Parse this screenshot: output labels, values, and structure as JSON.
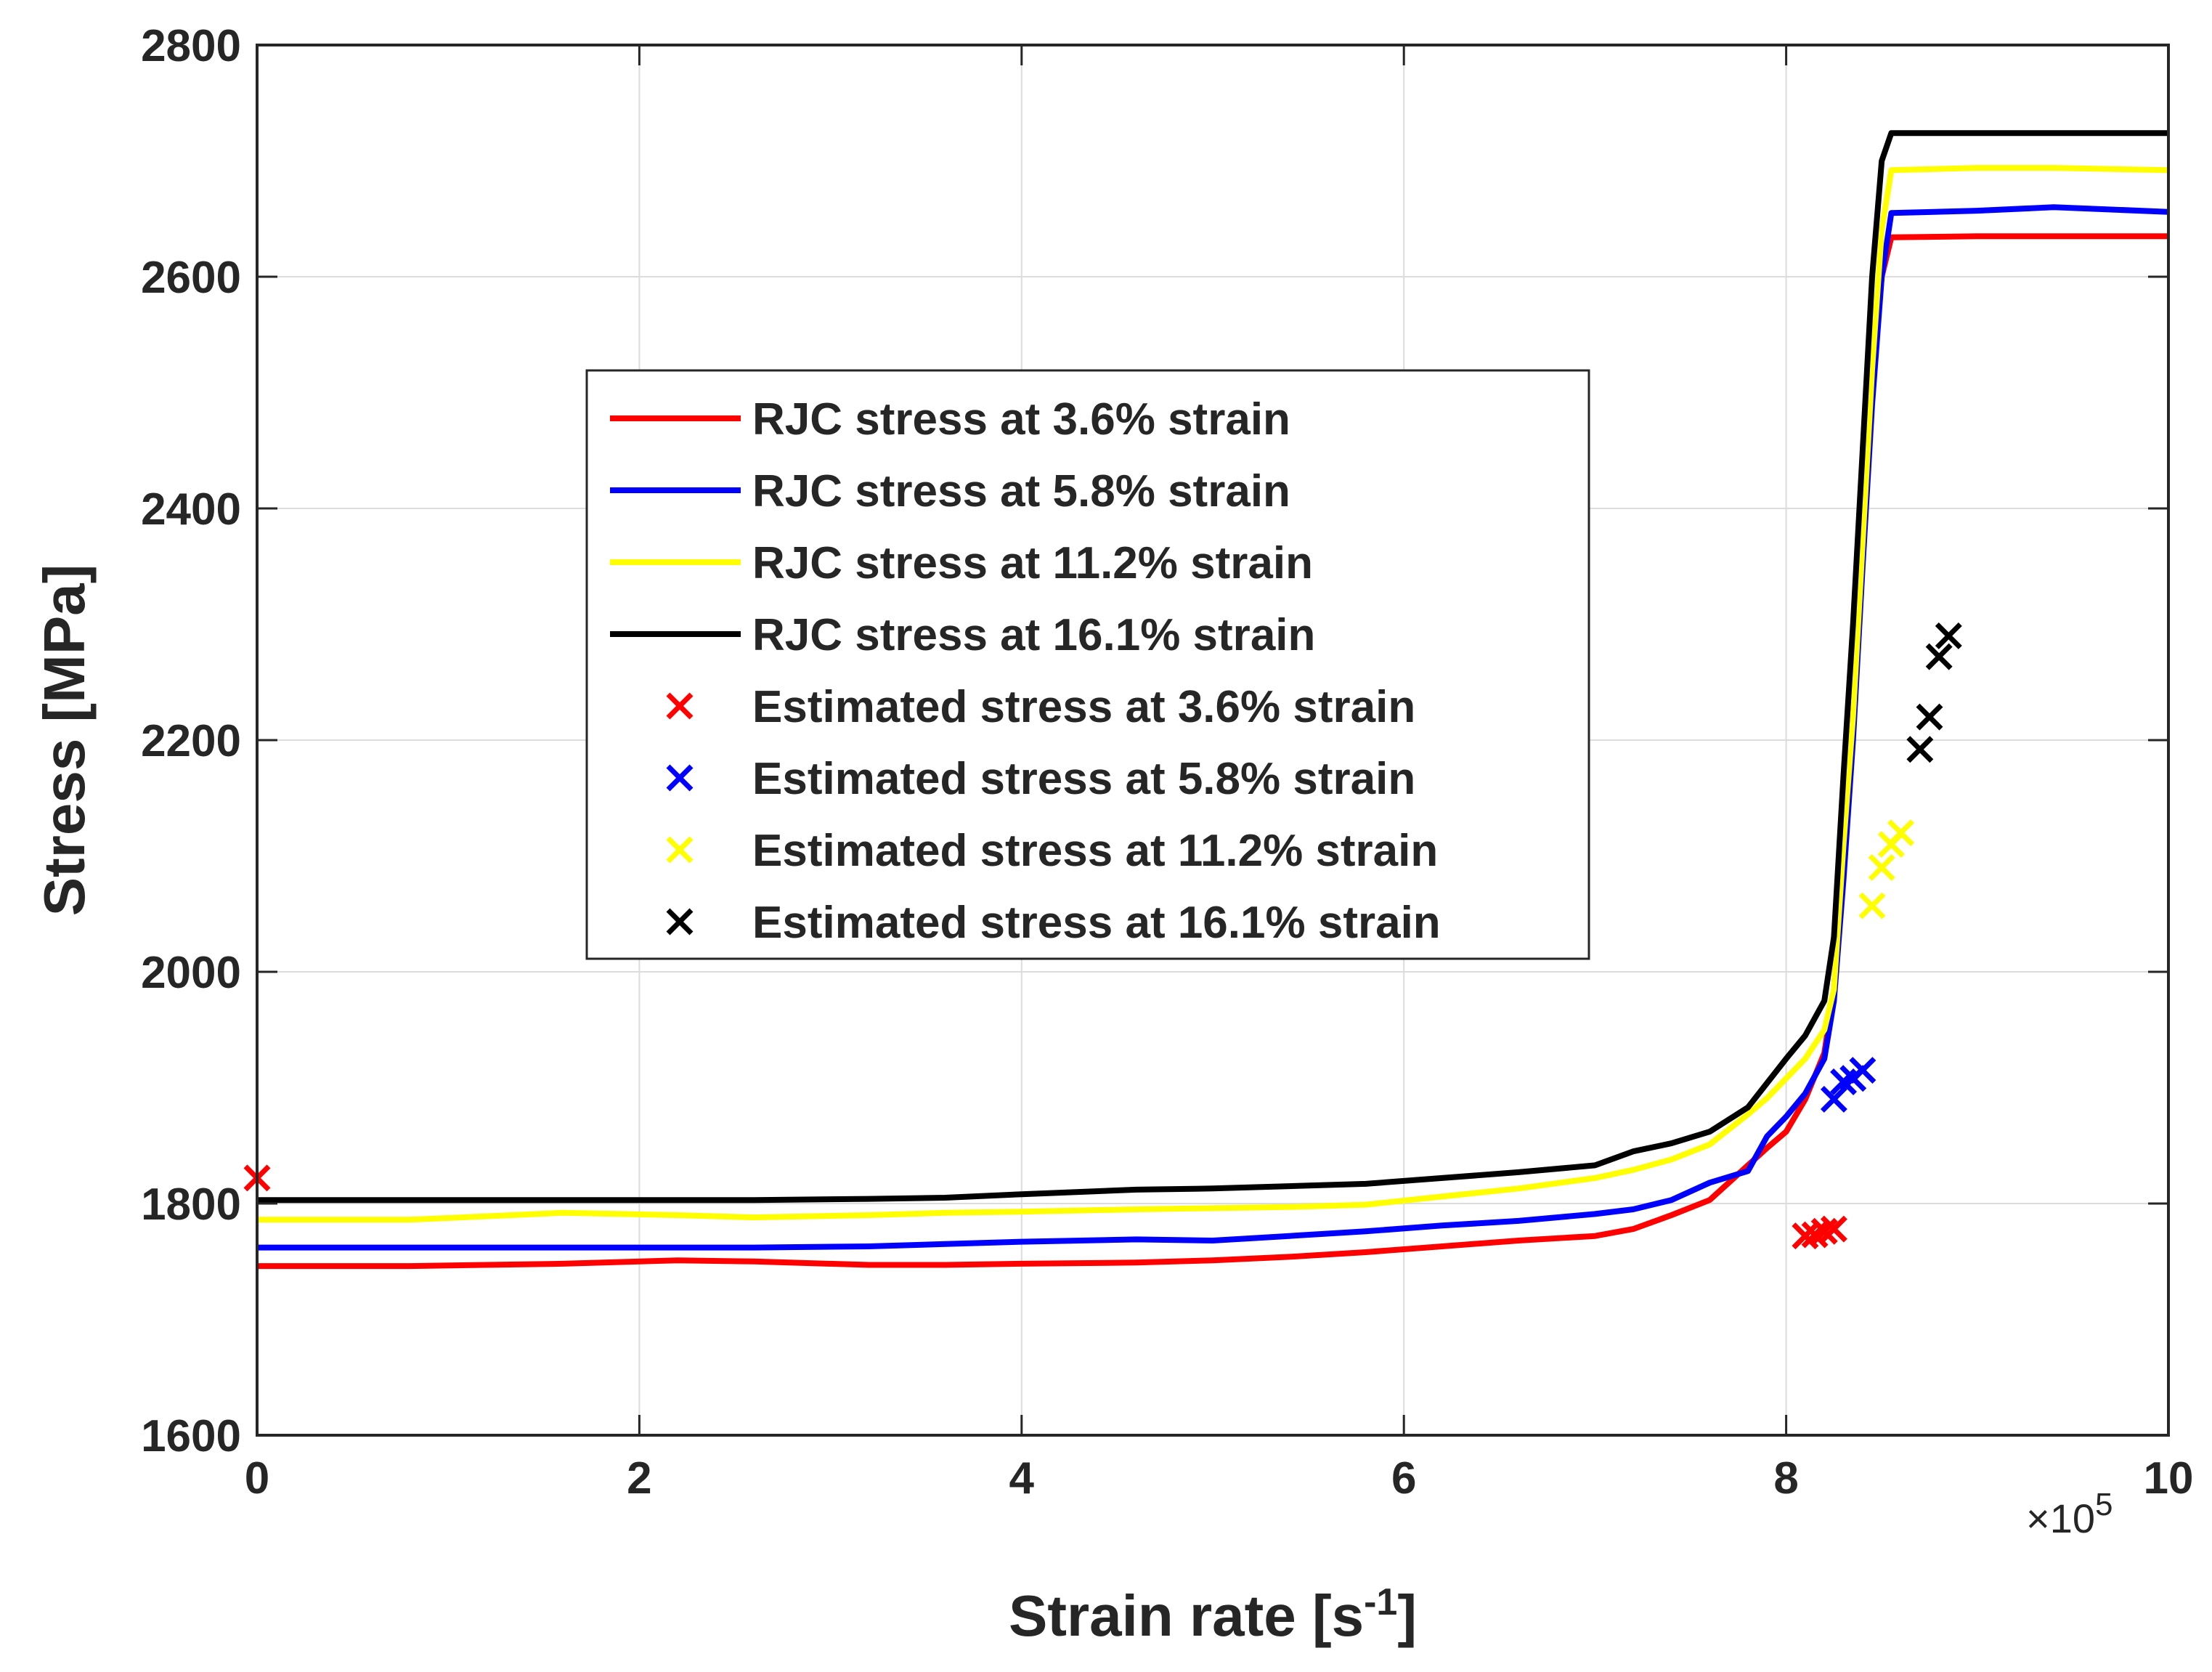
{
  "chart_data": {
    "type": "line",
    "xlabel": "Strain rate [s",
    "xlabel_superscript": "-1",
    "xlabel_suffix": "]",
    "ylabel": "Stress [MPa]",
    "x_multiplier_label": "×10",
    "x_multiplier_exponent": "5",
    "xlim": [
      0,
      10
    ],
    "ylim": [
      1600,
      2800
    ],
    "x_ticks": [
      0,
      2,
      4,
      6,
      8,
      10
    ],
    "y_ticks": [
      1600,
      1800,
      2000,
      2200,
      2400,
      2600,
      2800
    ],
    "grid": true,
    "legend_position": "center-left",
    "series": [
      {
        "name": "RJC stress at 3.6% strain",
        "kind": "line",
        "color": "#ff0000",
        "x": [
          0,
          0.8,
          1.6,
          2.2,
          2.6,
          3.2,
          3.6,
          4.0,
          4.6,
          5.0,
          5.4,
          5.8,
          6.2,
          6.6,
          7.0,
          7.2,
          7.4,
          7.6,
          7.8,
          7.9,
          8.0,
          8.1,
          8.2,
          8.25,
          8.3,
          8.35,
          8.4,
          8.45,
          8.5,
          8.55,
          9.0,
          9.5,
          10.0
        ],
        "values": [
          1746,
          1746,
          1748,
          1751,
          1750,
          1747,
          1747,
          1748,
          1749,
          1751,
          1754,
          1758,
          1763,
          1768,
          1772,
          1778,
          1790,
          1803,
          1833,
          1848,
          1862,
          1890,
          1930,
          1985,
          2110,
          2240,
          2380,
          2500,
          2600,
          2634,
          2635,
          2635,
          2635
        ]
      },
      {
        "name": "RJC stress at 5.8% strain",
        "kind": "line",
        "color": "#0000ff",
        "x": [
          0,
          0.8,
          1.6,
          2.2,
          2.6,
          3.2,
          3.6,
          4.0,
          4.6,
          5.0,
          5.4,
          5.8,
          6.2,
          6.6,
          7.0,
          7.2,
          7.4,
          7.6,
          7.8,
          7.9,
          8.0,
          8.1,
          8.2,
          8.25,
          8.3,
          8.35,
          8.4,
          8.45,
          8.5,
          8.55,
          9.0,
          9.4,
          10.0
        ],
        "values": [
          1762,
          1762,
          1762,
          1762,
          1762,
          1763,
          1765,
          1767,
          1769,
          1768,
          1772,
          1776,
          1781,
          1785,
          1791,
          1795,
          1803,
          1818,
          1828,
          1858,
          1875,
          1895,
          1925,
          1975,
          2080,
          2200,
          2350,
          2490,
          2600,
          2655,
          2657,
          2660,
          2656
        ]
      },
      {
        "name": "RJC stress at 11.2% strain",
        "kind": "line",
        "color": "#ffff00",
        "x": [
          0,
          0.8,
          1.6,
          2.2,
          2.6,
          3.2,
          3.6,
          4.0,
          4.6,
          5.0,
          5.4,
          5.8,
          6.2,
          6.6,
          7.0,
          7.2,
          7.4,
          7.6,
          7.8,
          7.9,
          8.0,
          8.1,
          8.2,
          8.25,
          8.3,
          8.35,
          8.4,
          8.45,
          8.5,
          8.55,
          9.0,
          9.4,
          10.0
        ],
        "values": [
          1786,
          1786,
          1792,
          1790,
          1788,
          1790,
          1792,
          1793,
          1795,
          1796,
          1797,
          1799,
          1806,
          1813,
          1822,
          1829,
          1838,
          1851,
          1877,
          1891,
          1908,
          1925,
          1950,
          1985,
          2110,
          2220,
          2370,
          2520,
          2640,
          2692,
          2694,
          2694,
          2692
        ]
      },
      {
        "name": "RJC stress at 16.1% strain",
        "kind": "line",
        "color": "#000000",
        "x": [
          0,
          0.8,
          1.6,
          2.2,
          2.6,
          3.2,
          3.6,
          4.0,
          4.6,
          5.0,
          5.4,
          5.8,
          6.2,
          6.6,
          7.0,
          7.2,
          7.4,
          7.6,
          7.8,
          7.9,
          8.0,
          8.1,
          8.2,
          8.25,
          8.3,
          8.35,
          8.4,
          8.45,
          8.5,
          8.55,
          9.0,
          9.4,
          10.0
        ],
        "values": [
          1803,
          1803,
          1803,
          1803,
          1803,
          1804,
          1805,
          1808,
          1812,
          1813,
          1815,
          1817,
          1822,
          1827,
          1833,
          1845,
          1852,
          1862,
          1883,
          1904,
          1925,
          1945,
          1975,
          2030,
          2170,
          2300,
          2450,
          2600,
          2700,
          2724,
          2724,
          2724,
          2724
        ]
      },
      {
        "name": "Estimated stress at 3.6% strain",
        "kind": "marker",
        "color": "#ff0000",
        "x": [
          0.0,
          8.1,
          8.15,
          8.2,
          8.25
        ],
        "values": [
          1822,
          1772,
          1773,
          1776,
          1778
        ]
      },
      {
        "name": "Estimated stress at 5.8% strain",
        "kind": "marker",
        "color": "#0000ff",
        "x": [
          8.25,
          8.3,
          8.35,
          8.4
        ],
        "values": [
          1890,
          1905,
          1908,
          1915
        ]
      },
      {
        "name": "Estimated stress at 11.2% strain",
        "kind": "marker",
        "color": "#ffff00",
        "x": [
          8.45,
          8.5,
          8.55,
          8.6
        ],
        "values": [
          2057,
          2090,
          2110,
          2120
        ]
      },
      {
        "name": "Estimated stress at 16.1% strain",
        "kind": "marker",
        "color": "#000000",
        "x": [
          8.7,
          8.75,
          8.8,
          8.85
        ],
        "values": [
          2192,
          2220,
          2272,
          2290
        ]
      }
    ]
  }
}
